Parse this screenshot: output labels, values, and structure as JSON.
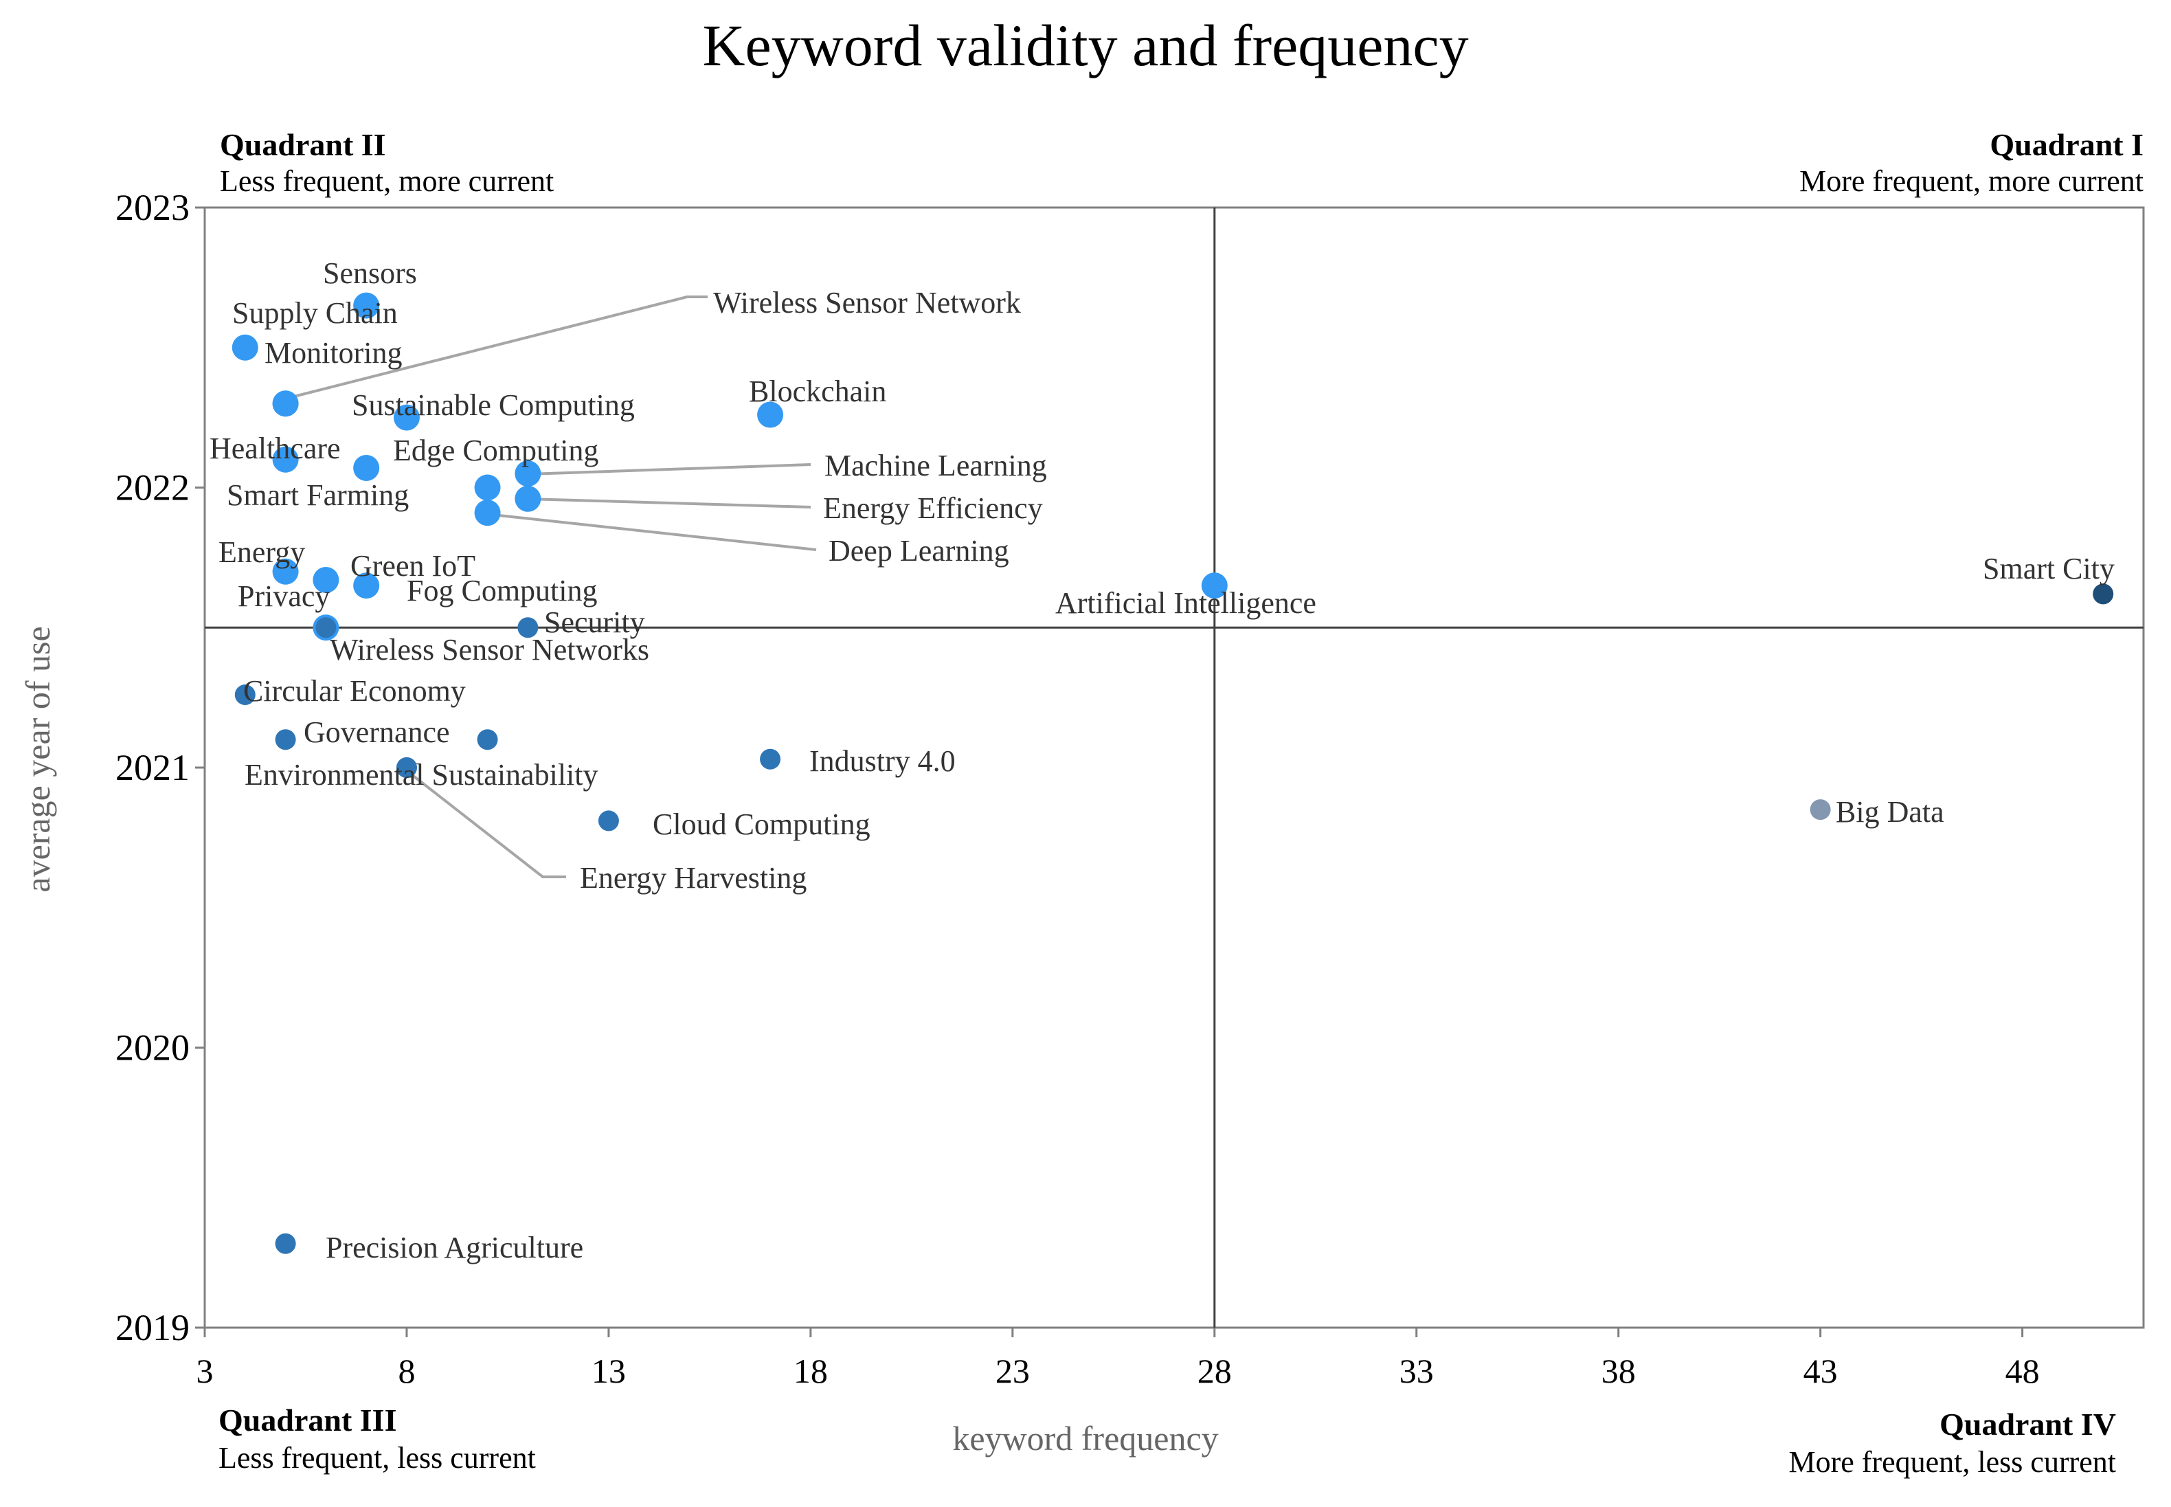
{
  "chart_data": {
    "type": "scatter",
    "title": "Keyword validity and frequency",
    "xlabel": "keyword frequency",
    "ylabel": "average year of use",
    "xlim": [
      3,
      51
    ],
    "ylim": [
      2019,
      2023
    ],
    "xticks": [
      "3",
      "8",
      "13",
      "18",
      "23",
      "28",
      "33",
      "38",
      "43",
      "48"
    ],
    "yticks": [
      "2019",
      "2020",
      "2021",
      "2022",
      "2023"
    ],
    "divider_x": 28,
    "divider_y": 2021.5,
    "grid": false,
    "quadrants": [
      {
        "id": "I",
        "title": "Quadrant I",
        "subtitle": "More frequent, more current",
        "position": "top-right"
      },
      {
        "id": "II",
        "title": "Quadrant II",
        "subtitle": "Less frequent, more current",
        "position": "top-left"
      },
      {
        "id": "III",
        "title": "Quadrant III",
        "subtitle": "Less frequent, less current",
        "position": "bottom-left"
      },
      {
        "id": "IV",
        "title": "Quadrant IV",
        "subtitle": "More frequent, less current",
        "position": "bottom-right"
      }
    ],
    "colors": {
      "current": "#3399f3",
      "older": "#2e75b6",
      "dark": "#1f4e79",
      "gray": "#8497b0",
      "leader": "#a6a6a6",
      "axis": "#808080",
      "divider": "#404040"
    },
    "points": [
      {
        "label": "Sensors",
        "x": 7,
        "y": 2022.65,
        "color": "current"
      },
      {
        "label": "Supply Chain",
        "x": 4,
        "y": 2022.5,
        "color": "current"
      },
      {
        "label": "Monitoring",
        "x": 5,
        "y": 2022.3,
        "color": "current"
      },
      {
        "label": "Wireless Sensor Network",
        "x": 5,
        "y": 2022.3,
        "color": "current",
        "leader": true
      },
      {
        "label": "Sustainable Computing",
        "x": 8,
        "y": 2022.25,
        "color": "current"
      },
      {
        "label": "Blockchain",
        "x": 17,
        "y": 2022.26,
        "color": "current"
      },
      {
        "label": "Healthcare",
        "x": 5,
        "y": 2022.1,
        "color": "current"
      },
      {
        "label": "Edge Computing",
        "x": 7,
        "y": 2022.07,
        "color": "current"
      },
      {
        "label": "Machine Learning",
        "x": 11,
        "y": 2022.05,
        "color": "current",
        "leader": true
      },
      {
        "label": "Smart Farming",
        "x": 10,
        "y": 2022.0,
        "color": "current"
      },
      {
        "label": "Energy Efficiency",
        "x": 11,
        "y": 2021.96,
        "color": "current",
        "leader": true
      },
      {
        "label": "Deep Learning",
        "x": 10,
        "y": 2021.91,
        "color": "current",
        "leader": true
      },
      {
        "label": "Energy",
        "x": 5,
        "y": 2021.7,
        "color": "current"
      },
      {
        "label": "Green IoT",
        "x": 6,
        "y": 2021.67,
        "color": "current"
      },
      {
        "label": "Fog Computing",
        "x": 7,
        "y": 2021.65,
        "color": "current"
      },
      {
        "label": "Privacy",
        "x": 6,
        "y": 2021.5,
        "color": "current"
      },
      {
        "label": "Artificial Intelligence",
        "x": 28,
        "y": 2021.65,
        "color": "current"
      },
      {
        "label": "Smart City",
        "x": 50,
        "y": 2021.62,
        "color": "dark"
      },
      {
        "label": "Security",
        "x": 11,
        "y": 2021.5,
        "color": "older"
      },
      {
        "label": "Wireless Sensor Networks",
        "x": 6,
        "y": 2021.5,
        "color": "older"
      },
      {
        "label": "Circular Economy",
        "x": 4,
        "y": 2021.26,
        "color": "older"
      },
      {
        "label": "Governance",
        "x": 5,
        "y": 2021.1,
        "color": "older"
      },
      {
        "label": "Governance2",
        "x": 10,
        "y": 2021.1,
        "color": "older",
        "hidden_label": true
      },
      {
        "label": "Industry 4.0",
        "x": 17,
        "y": 2021.03,
        "color": "older"
      },
      {
        "label": "Environmental Sustainability",
        "x": 8,
        "y": 2021.0,
        "color": "older"
      },
      {
        "label": "Energy Harvesting",
        "x": 8,
        "y": 2021.0,
        "color": "older",
        "leader": true
      },
      {
        "label": "Cloud Computing",
        "x": 13,
        "y": 2020.81,
        "color": "older"
      },
      {
        "label": "Big Data",
        "x": 43,
        "y": 2020.85,
        "color": "gray"
      },
      {
        "label": "Precision Agriculture",
        "x": 5,
        "y": 2019.3,
        "color": "older"
      }
    ]
  }
}
